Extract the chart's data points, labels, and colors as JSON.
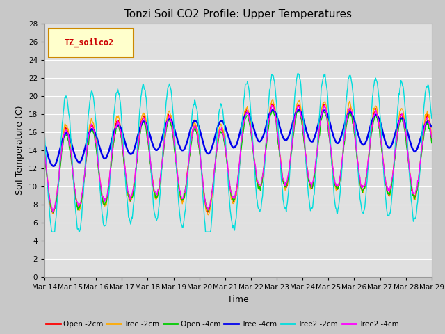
{
  "title": "Tonzi Soil CO2 Profile: Upper Temperatures",
  "xlabel": "Time",
  "ylabel": "Soil Temperature (C)",
  "ylim": [
    0,
    28
  ],
  "yticks": [
    0,
    2,
    4,
    6,
    8,
    10,
    12,
    14,
    16,
    18,
    20,
    22,
    24,
    26,
    28
  ],
  "xtick_labels": [
    "Mar 14",
    "Mar 15",
    "Mar 16",
    "Mar 17",
    "Mar 18",
    "Mar 19",
    "Mar 20",
    "Mar 21",
    "Mar 22",
    "Mar 23",
    "Mar 24",
    "Mar 25",
    "Mar 26",
    "Mar 27",
    "Mar 28",
    "Mar 29"
  ],
  "series_labels": [
    "Open -2cm",
    "Tree -2cm",
    "Open -4cm",
    "Tree -4cm",
    "Tree2 -2cm",
    "Tree2 -4cm"
  ],
  "series_colors": [
    "#ff0000",
    "#ffaa00",
    "#00cc00",
    "#0000ee",
    "#00dddd",
    "#ff00ff"
  ],
  "legend_label": "TZ_soilco2",
  "legend_bg": "#ffffcc",
  "legend_border": "#cc8800",
  "fig_bg": "#c8c8c8",
  "plot_bg": "#e0e0e0",
  "lower_band_bg": "#d0d0d0",
  "grid_color": "#ffffff",
  "title_fontsize": 11,
  "axis_fontsize": 9,
  "tick_fontsize": 7.5
}
